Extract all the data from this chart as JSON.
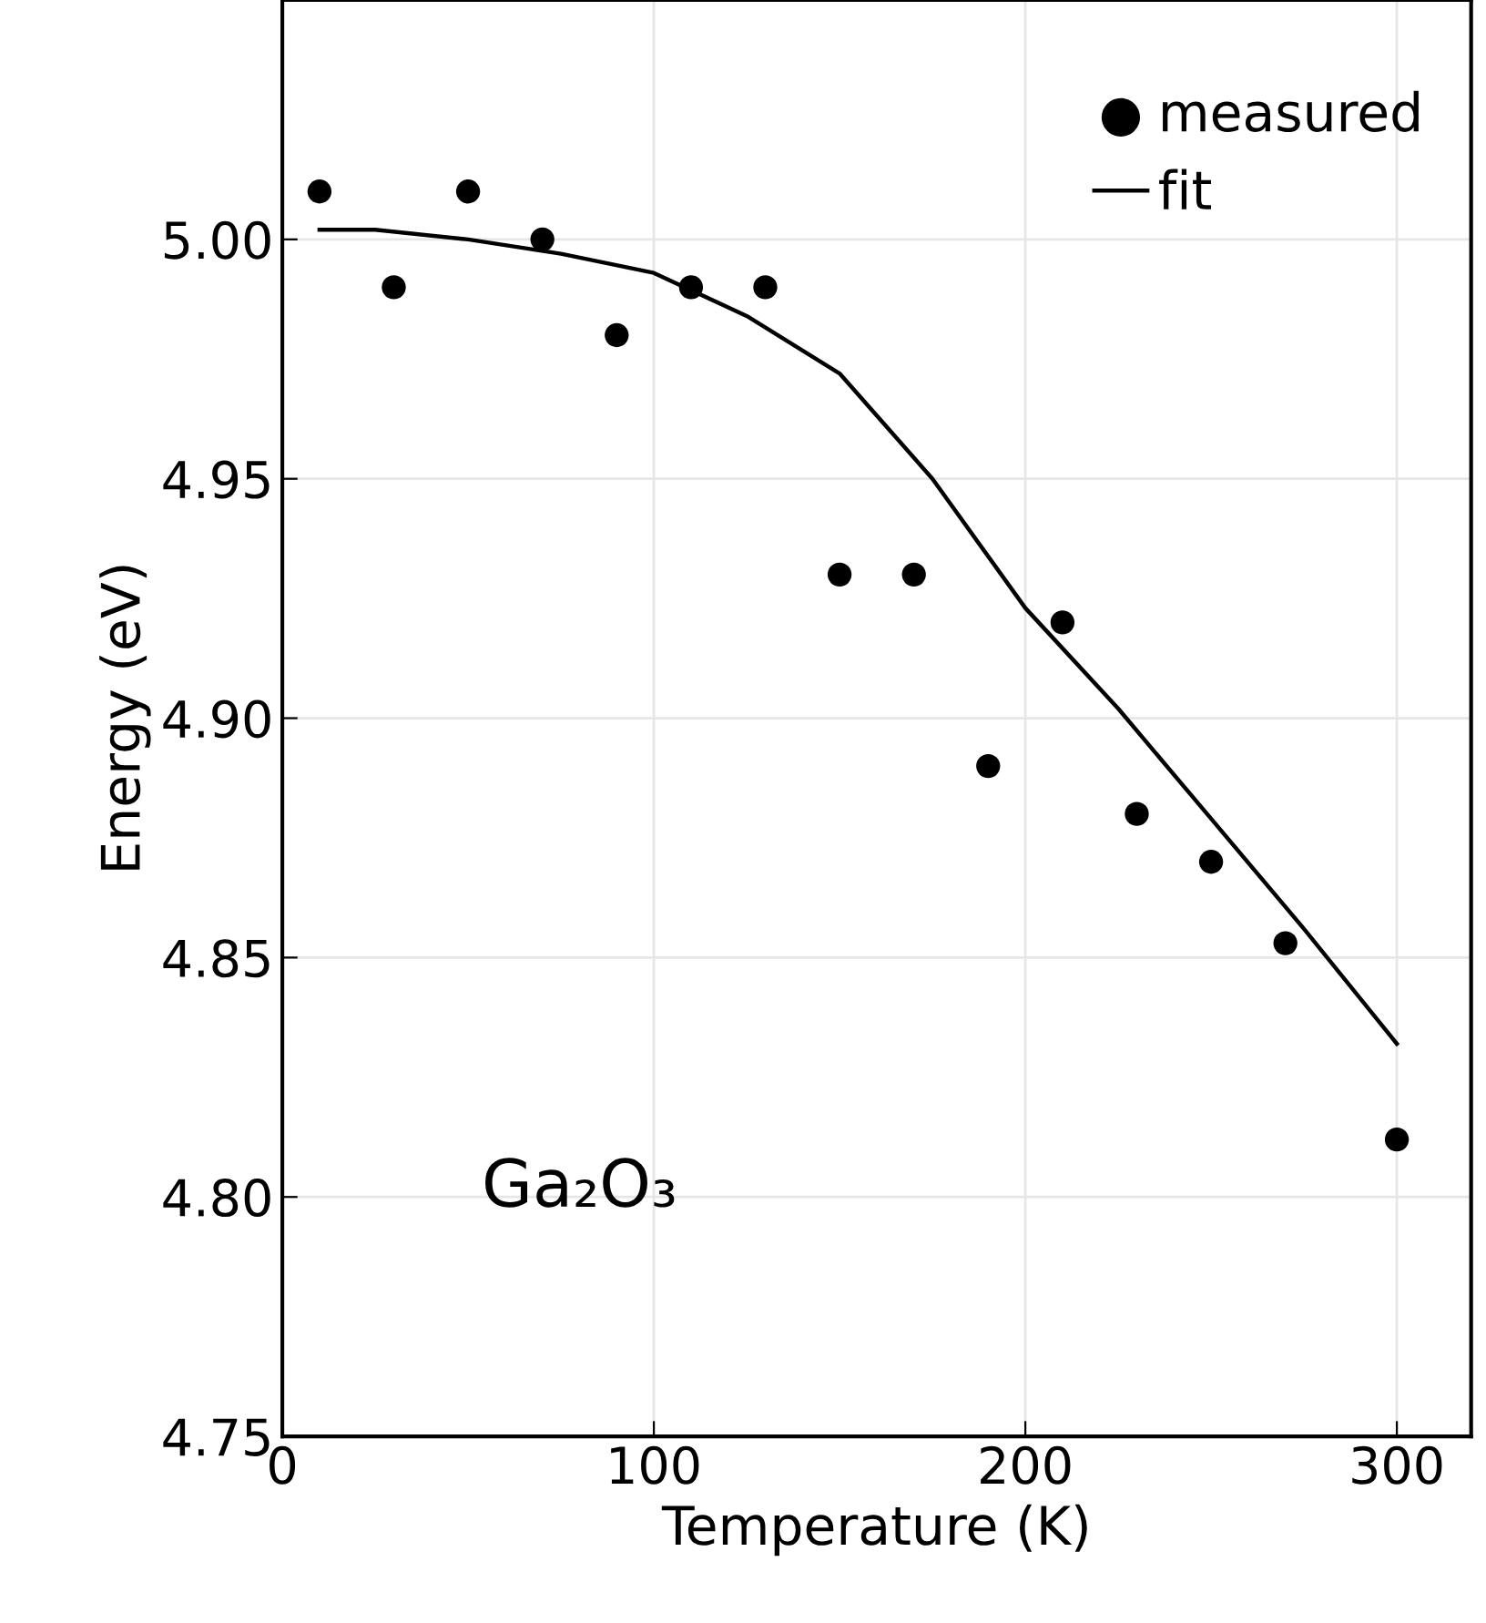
{
  "chart_data": {
    "type": "scatter",
    "xlabel": "Temperature (K)",
    "ylabel": "Energy (eV)",
    "annotations": [
      "Ga₂O₃"
    ],
    "series": [
      {
        "name": "measured",
        "marker": "circle",
        "color": "#000000",
        "x": [
          10,
          30,
          50,
          70,
          90,
          110,
          130,
          150,
          170,
          190,
          210,
          230,
          250,
          270,
          300
        ],
        "values": [
          5.01,
          4.99,
          5.01,
          5.0,
          4.98,
          4.99,
          4.99,
          4.93,
          4.93,
          4.89,
          4.92,
          4.88,
          4.87,
          4.853,
          4.812
        ]
      },
      {
        "name": "fit",
        "type": "line",
        "color": "#000000",
        "x": [
          10,
          25,
          50,
          75,
          100,
          125,
          150,
          175,
          200,
          225,
          250,
          275,
          300
        ],
        "values": [
          5.002,
          5.002,
          5.0,
          4.997,
          4.993,
          4.984,
          4.972,
          4.95,
          4.923,
          4.902,
          4.879,
          4.856,
          4.832
        ]
      }
    ],
    "xlim": [
      0,
      320
    ],
    "ylim": [
      4.75,
      5.05
    ],
    "xticks": [
      0,
      100,
      200,
      300
    ],
    "yticks": [
      {
        "value": 4.75,
        "label": "4.75"
      },
      {
        "value": 4.8,
        "label": "4.80"
      },
      {
        "value": 4.85,
        "label": "4.85"
      },
      {
        "value": 4.9,
        "label": "4.90"
      },
      {
        "value": 4.95,
        "label": "4.95"
      },
      {
        "value": 5.0,
        "label": "5.00"
      }
    ],
    "grid": true,
    "legend": "top right",
    "line_style": "solid"
  }
}
